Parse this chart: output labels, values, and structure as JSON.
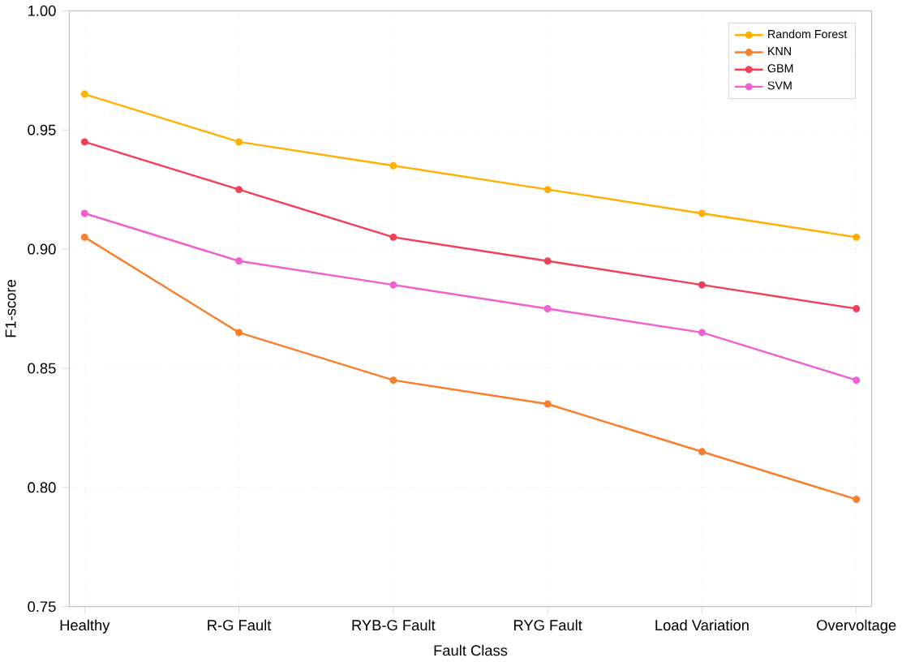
{
  "chart_data": {
    "type": "line",
    "xlabel": "Fault Class",
    "ylabel": "F1-score",
    "categories": [
      "Healthy",
      "R-G Fault",
      "RYB-G Fault",
      "RYG Fault",
      "Load Variation",
      "Overvoltage"
    ],
    "series": [
      {
        "name": "Random Forest",
        "color": "#ffb000",
        "values": [
          0.965,
          0.945,
          0.935,
          0.925,
          0.915,
          0.905
        ]
      },
      {
        "name": "KNN",
        "color": "#f7802f",
        "values": [
          0.905,
          0.865,
          0.845,
          0.835,
          0.815,
          0.795
        ]
      },
      {
        "name": "GBM",
        "color": "#f0405a",
        "values": [
          0.945,
          0.925,
          0.905,
          0.895,
          0.885,
          0.875
        ]
      },
      {
        "name": "SVM",
        "color": "#f060d0",
        "values": [
          0.915,
          0.895,
          0.885,
          0.875,
          0.865,
          0.845
        ]
      }
    ],
    "ylim": [
      0.75,
      1.0
    ],
    "yticks": [
      {
        "value": 0.75,
        "label": "0.75"
      },
      {
        "value": 0.8,
        "label": "0.80"
      },
      {
        "value": 0.85,
        "label": "0.85"
      },
      {
        "value": 0.9,
        "label": "0.90"
      },
      {
        "value": 0.95,
        "label": "0.95"
      },
      {
        "value": 1.0,
        "label": "1.00"
      }
    ],
    "grid": true,
    "legend": "top right",
    "marker": "circle",
    "line_style": "solid"
  }
}
